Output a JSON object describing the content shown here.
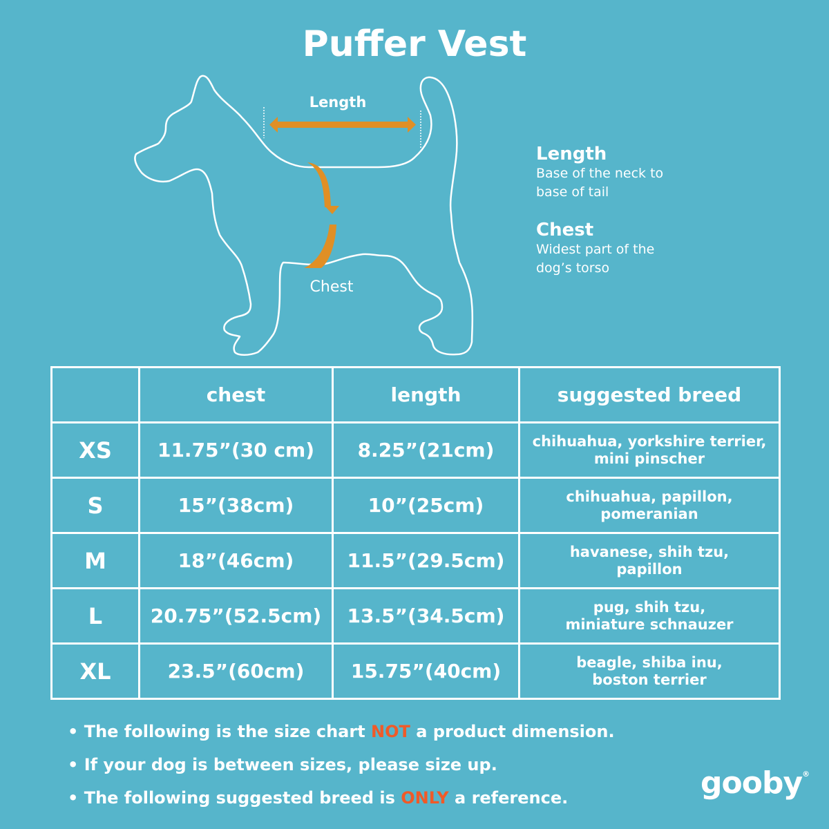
{
  "title": "Puffer Vest",
  "diagram": {
    "length_label": "Length",
    "chest_label": "Chest"
  },
  "legend": [
    {
      "heading": "Length",
      "desc_lines": [
        "Base of the neck to",
        "base of tail"
      ]
    },
    {
      "heading": "Chest",
      "desc_lines": [
        "Widest part of the",
        "dog’s torso"
      ]
    }
  ],
  "table": {
    "headers": [
      "",
      "chest",
      "length",
      "suggested breed"
    ],
    "rows": [
      {
        "size": "XS",
        "chest": "11.75”(30 cm)",
        "length": "8.25”(21cm)",
        "breed": [
          "chihuahua, yorkshire terrier,",
          "mini pinscher"
        ]
      },
      {
        "size": "S",
        "chest": "15”(38cm)",
        "length": "10”(25cm)",
        "breed": [
          "chihuahua, papillon,",
          "pomeranian"
        ]
      },
      {
        "size": "M",
        "chest": "18”(46cm)",
        "length": "11.5”(29.5cm)",
        "breed": [
          "havanese, shih tzu,",
          "papillon"
        ]
      },
      {
        "size": "L",
        "chest": "20.75”(52.5cm)",
        "length": "13.5”(34.5cm)",
        "breed": [
          "pug, shih tzu,",
          "miniature schnauzer"
        ]
      },
      {
        "size": "XL",
        "chest": "23.5”(60cm)",
        "length": "15.75”(40cm)",
        "breed": [
          "beagle, shiba inu,",
          "boston terrier"
        ]
      }
    ]
  },
  "notes": [
    {
      "pre": "The following is  the size chart ",
      "em": "NOT",
      "post": " a product dimension."
    },
    {
      "pre": "If your dog is between sizes, please size up.",
      "em": "",
      "post": ""
    },
    {
      "pre": "The following suggested breed is ",
      "em": "ONLY",
      "post": " a reference."
    }
  ],
  "bullet": "•",
  "brand": {
    "name": "gooby",
    "mark": "®"
  },
  "colors": {
    "background": "#56b5cb",
    "arrow": "#e08f25",
    "emphasis": "#f05a28",
    "text": "#ffffff"
  }
}
